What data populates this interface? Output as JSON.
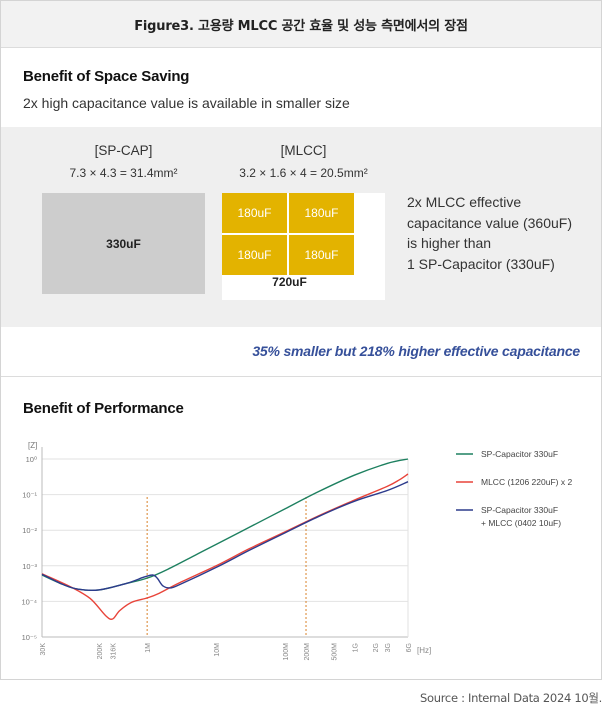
{
  "header": {
    "title": "Figure3. 고용량 MLCC 공간 효율 및 성능 측면에서의 장점"
  },
  "space": {
    "title": "Benefit of Space Saving",
    "subtitle": "2x high capacitance value is available in smaller size",
    "sp_cap": {
      "name": "[SP-CAP]",
      "dimensions": "7.3 × 4.3 = 31.4mm²",
      "value": "330uF"
    },
    "mlcc": {
      "name": "[MLCC]",
      "dimensions": "3.2 × 1.6 × 4 = 20.5mm²",
      "cells": [
        "180uF",
        "180uF",
        "180uF",
        "180uF"
      ],
      "total": "720uF"
    },
    "description_lines": [
      "2x MLCC effective",
      "capacitance value (360uF)",
      "is higher than",
      "1 SP-Capacitor (330uF)"
    ],
    "highlight": "35% smaller but 218% higher effective capacitance"
  },
  "performance": {
    "title": "Benefit of Performance"
  },
  "colors": {
    "green": "#1e8060",
    "red": "#e8443a",
    "navy": "#2d3b8c",
    "gold": "#e3b300",
    "marker": "#d9822b",
    "accent_text": "#36509a"
  },
  "chart_data": {
    "type": "line",
    "title": "",
    "ylabel": "[Z]",
    "xlabel": "[Hz]",
    "x_scale": "log",
    "y_scale": "log",
    "xlim": [
      30000,
      6000000000
    ],
    "ylim": [
      1e-05,
      1
    ],
    "y_ticks": [
      {
        "value": 1,
        "label": "10⁰"
      },
      {
        "value": 0.1,
        "label": "10⁻¹"
      },
      {
        "value": 0.01,
        "label": "10⁻²"
      },
      {
        "value": 0.001,
        "label": "10⁻³"
      },
      {
        "value": 0.0001,
        "label": "10⁻⁴"
      },
      {
        "value": 1e-05,
        "label": "10⁻⁵"
      }
    ],
    "x_ticks": [
      {
        "value": 30000,
        "label": "30K"
      },
      {
        "value": 200000,
        "label": "200K"
      },
      {
        "value": 316000,
        "label": "316K"
      },
      {
        "value": 1000000,
        "label": "1M"
      },
      {
        "value": 10000000,
        "label": "10M"
      },
      {
        "value": 100000000,
        "label": "100M"
      },
      {
        "value": 200000000,
        "label": "200M"
      },
      {
        "value": 500000000,
        "label": "500M"
      },
      {
        "value": 1000000000,
        "label": "1G"
      },
      {
        "value": 2000000000,
        "label": "2G"
      },
      {
        "value": 3000000000,
        "label": "3G"
      },
      {
        "value": 6000000000,
        "label": "6G"
      }
    ],
    "markers": [
      1000000,
      200000000
    ],
    "series": [
      {
        "name": "SP-Capacitor 330uF",
        "color": "#1e8060",
        "points": [
          [
            30000,
            0.00055
          ],
          [
            60000,
            0.0003
          ],
          [
            100000,
            0.00022
          ],
          [
            200000,
            0.00021
          ],
          [
            500000,
            0.00032
          ],
          [
            1000000,
            0.00045
          ],
          [
            2000000,
            0.0008
          ],
          [
            5000000,
            0.002
          ],
          [
            10000000,
            0.004
          ],
          [
            30000000,
            0.012
          ],
          [
            100000000,
            0.04
          ],
          [
            300000000,
            0.12
          ],
          [
            1000000000,
            0.35
          ],
          [
            3000000000,
            0.75
          ],
          [
            6000000000,
            1.0
          ]
        ]
      },
      {
        "name": "MLCC (1206 220uF) x 2",
        "color": "#e8443a",
        "points": [
          [
            30000,
            0.0006
          ],
          [
            80000,
            0.00025
          ],
          [
            150000,
            0.00012
          ],
          [
            250000,
            4e-05
          ],
          [
            316000,
            3.2e-05
          ],
          [
            400000,
            5.5e-05
          ],
          [
            600000,
            9.5e-05
          ],
          [
            1000000,
            0.000125
          ],
          [
            1500000,
            0.00017
          ],
          [
            3000000,
            0.00034
          ],
          [
            10000000,
            0.001
          ],
          [
            30000000,
            0.003
          ],
          [
            100000000,
            0.009
          ],
          [
            300000000,
            0.025
          ],
          [
            1000000000,
            0.07
          ],
          [
            3000000000,
            0.17
          ],
          [
            4500000000,
            0.26
          ],
          [
            6000000000,
            0.38
          ]
        ]
      },
      {
        "name": "SP-Capacitor 330uF + MLCC (0402 10uF)",
        "legend_lines": [
          "SP-Capacitor 330uF",
          "+ MLCC (0402 10uF)"
        ],
        "color": "#2d3b8c",
        "points": [
          [
            30000,
            0.00058
          ],
          [
            60000,
            0.0003
          ],
          [
            100000,
            0.00022
          ],
          [
            200000,
            0.00021
          ],
          [
            500000,
            0.00032
          ],
          [
            900000,
            0.00048
          ],
          [
            1200000,
            0.00055
          ],
          [
            1400000,
            0.00045
          ],
          [
            1700000,
            0.00027
          ],
          [
            2200000,
            0.00024
          ],
          [
            3000000,
            0.0003
          ],
          [
            10000000,
            0.0009
          ],
          [
            30000000,
            0.0027
          ],
          [
            100000000,
            0.0085
          ],
          [
            300000000,
            0.024
          ],
          [
            1000000000,
            0.065
          ],
          [
            3000000000,
            0.13
          ],
          [
            6000000000,
            0.23
          ]
        ]
      }
    ]
  },
  "source": "Source : Internal Data 2024 10월."
}
